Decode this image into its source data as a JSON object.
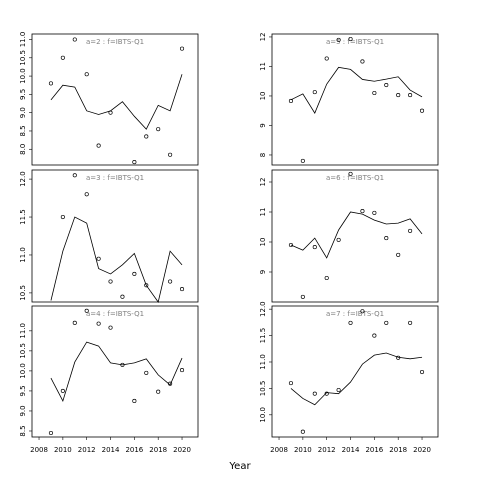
{
  "xlabel": "Year",
  "xlim": [
    2007.41,
    2021.34
  ],
  "xticks": [
    2008,
    2010,
    2012,
    2014,
    2016,
    2018,
    2020
  ],
  "chart_data": [
    {
      "type": "scatter-line",
      "title": "a=2 : f=IBTS-Q1",
      "x": [
        2009,
        2010,
        2011,
        2012,
        2013,
        2014,
        2015,
        2016,
        2017,
        2018,
        2019,
        2020
      ],
      "ylim": [
        7.57,
        11.15
      ],
      "yticks": [
        {
          "value": 8,
          "label": "8.0"
        },
        {
          "value": 8.5,
          "label": "8.5"
        },
        {
          "value": 9,
          "label": "9.0"
        },
        {
          "value": 9.5,
          "label": "9.5"
        },
        {
          "value": 10,
          "label": "10.0"
        },
        {
          "value": 10.5,
          "label": "10.5"
        },
        {
          "value": 11,
          "label": "11.0"
        }
      ],
      "series": [
        {
          "style": "points",
          "color": "#000000",
          "values": [
            9.8,
            10.5,
            11.0,
            10.05,
            8.1,
            9.0,
            null,
            7.65,
            8.35,
            8.55,
            7.85,
            10.75
          ]
        },
        {
          "style": "line",
          "color": "#000000",
          "values": [
            9.35,
            9.75,
            9.7,
            9.05,
            8.95,
            9.05,
            9.3,
            8.9,
            8.55,
            9.2,
            9.05,
            10.05
          ]
        }
      ]
    },
    {
      "type": "scatter-line",
      "title": "a=3 : f=IBTS-Q1",
      "x": [
        2009,
        2010,
        2011,
        2012,
        2013,
        2014,
        2015,
        2016,
        2017,
        2018,
        2019,
        2020
      ],
      "ylim": [
        10.38,
        12.12
      ],
      "yticks": [
        {
          "value": 10.5,
          "label": "10.5"
        },
        {
          "value": 11,
          "label": "11.0"
        },
        {
          "value": 11.5,
          "label": "11.5"
        },
        {
          "value": 12,
          "label": "12.0"
        }
      ],
      "series": [
        {
          "style": "points",
          "color": "#000000",
          "values": [
            null,
            11.5,
            12.05,
            11.8,
            10.95,
            10.65,
            10.45,
            10.75,
            10.6,
            null,
            10.65,
            10.55
          ]
        },
        {
          "style": "line",
          "color": "#000000",
          "values": [
            10.4,
            11.05,
            11.5,
            11.42,
            10.82,
            10.75,
            10.87,
            11.02,
            10.6,
            10.38,
            11.05,
            10.87
          ]
        }
      ]
    },
    {
      "type": "scatter-line",
      "title": "a=4 : f=IBTS-Q1",
      "x": [
        2009,
        2010,
        2011,
        2012,
        2013,
        2014,
        2015,
        2016,
        2017,
        2018,
        2019,
        2020
      ],
      "ylim": [
        8.35,
        11.62
      ],
      "yticks": [
        {
          "value": 8.5,
          "label": "8.5"
        },
        {
          "value": 9,
          "label": "9.0"
        },
        {
          "value": 9.5,
          "label": "9.5"
        },
        {
          "value": 10,
          "label": "10.0"
        },
        {
          "value": 10.5,
          "label": "10.5"
        },
        {
          "value": 11,
          "label": "11.0"
        }
      ],
      "series": [
        {
          "style": "points",
          "color": "#000000",
          "values": [
            8.45,
            9.5,
            11.2,
            11.5,
            11.18,
            11.08,
            10.15,
            9.25,
            9.95,
            9.48,
            9.68,
            10.02
          ]
        },
        {
          "style": "line",
          "color": "#000000",
          "values": [
            9.82,
            9.25,
            10.22,
            10.72,
            10.62,
            10.2,
            10.15,
            10.2,
            10.3,
            9.9,
            9.65,
            10.32
          ]
        }
      ]
    },
    {
      "type": "scatter-line",
      "title": "a=5 : f=IBTS-Q1",
      "x": [
        2009,
        2010,
        2011,
        2012,
        2013,
        2014,
        2015,
        2016,
        2017,
        2018,
        2019,
        2020
      ],
      "ylim": [
        7.66,
        12.1
      ],
      "yticks": [
        8,
        9,
        10,
        11,
        12
      ],
      "series": [
        {
          "style": "points",
          "color": "#000000",
          "values": [
            9.83,
            7.8,
            10.13,
            11.27,
            11.9,
            11.93,
            11.17,
            10.1,
            10.37,
            10.03,
            10.03,
            9.5
          ]
        },
        {
          "style": "line",
          "color": "#000000",
          "values": [
            9.87,
            10.07,
            9.42,
            10.4,
            10.97,
            10.9,
            10.56,
            10.5,
            10.57,
            10.65,
            10.2,
            9.97
          ]
        }
      ]
    },
    {
      "type": "scatter-line",
      "title": "a=6 : f=IBTS-Q1",
      "x": [
        2009,
        2010,
        2011,
        2012,
        2013,
        2014,
        2015,
        2016,
        2017,
        2018,
        2019,
        2020
      ],
      "ylim": [
        8.0,
        12.4
      ],
      "yticks": [
        9,
        10,
        11,
        12
      ],
      "series": [
        {
          "style": "points",
          "color": "#000000",
          "values": [
            9.9,
            8.17,
            9.83,
            8.8,
            10.07,
            12.27,
            11.03,
            10.97,
            10.13,
            9.57,
            10.37,
            null
          ]
        },
        {
          "style": "line",
          "color": "#000000",
          "values": [
            9.9,
            9.73,
            10.13,
            9.47,
            10.4,
            11.0,
            10.93,
            10.73,
            10.6,
            10.63,
            10.77,
            10.27
          ]
        }
      ]
    },
    {
      "type": "scatter-line",
      "title": "a=7 : f=IBTS-Q1",
      "x": [
        2009,
        2010,
        2011,
        2012,
        2013,
        2014,
        2015,
        2016,
        2017,
        2018,
        2019,
        2020
      ],
      "ylim": [
        9.58,
        12.06
      ],
      "yticks": [
        {
          "value": 10,
          "label": "10.0"
        },
        {
          "value": 10.5,
          "label": "10.5"
        },
        {
          "value": 11,
          "label": "11.0"
        },
        {
          "value": 11.5,
          "label": "11.5"
        },
        {
          "value": 12,
          "label": "12.0"
        }
      ],
      "series": [
        {
          "style": "points",
          "color": "#000000",
          "values": [
            10.6,
            9.68,
            10.4,
            10.4,
            10.47,
            11.74,
            11.96,
            11.5,
            11.74,
            11.08,
            11.74,
            10.81
          ]
        },
        {
          "style": "line",
          "color": "#000000",
          "values": [
            10.5,
            10.31,
            10.19,
            10.42,
            10.4,
            10.62,
            10.96,
            11.13,
            11.17,
            11.09,
            11.06,
            11.09
          ]
        }
      ]
    }
  ]
}
